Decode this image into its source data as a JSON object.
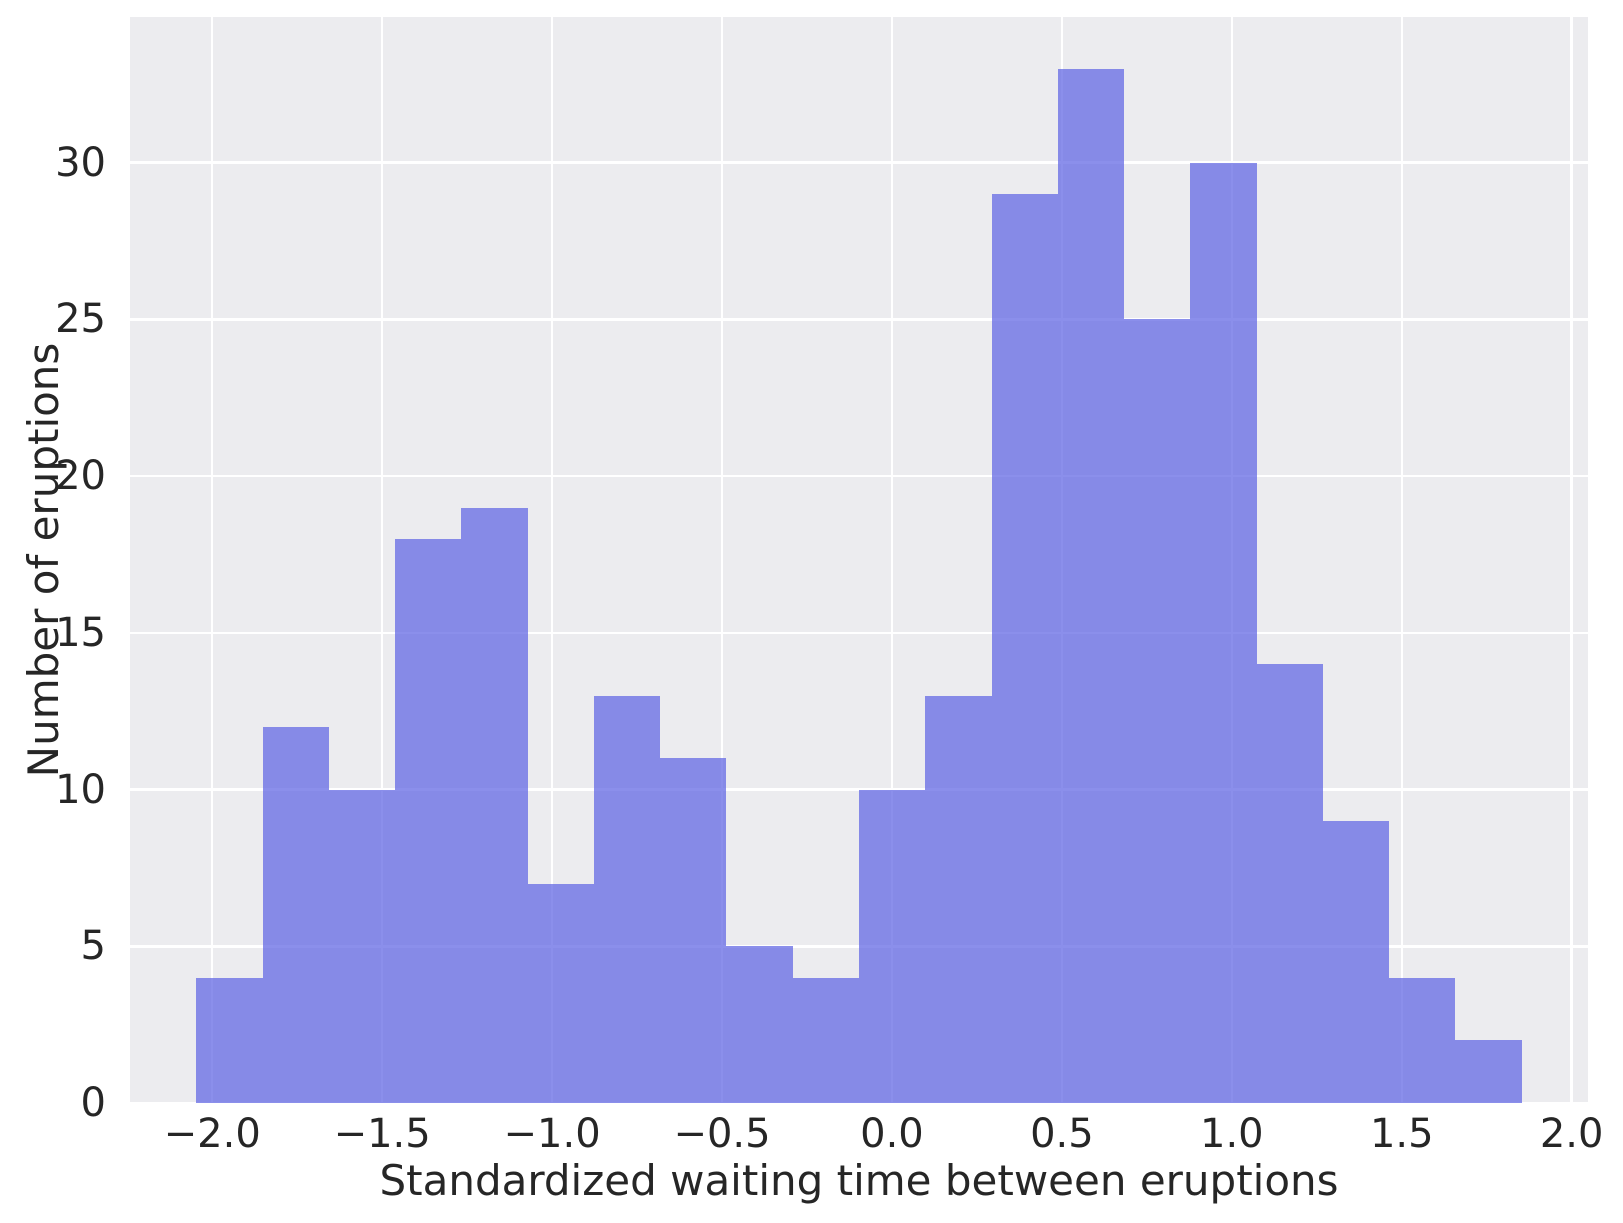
{
  "chart_data": {
    "type": "bar",
    "subtype": "histogram",
    "title": "",
    "xlabel": "Standardized waiting time between eruptions",
    "ylabel": "Number of eruptions",
    "bin_edges": [
      -2.047,
      -1.852,
      -1.657,
      -1.462,
      -1.267,
      -1.072,
      -0.877,
      -0.682,
      -0.487,
      -0.292,
      -0.097,
      0.098,
      0.293,
      0.488,
      0.683,
      0.878,
      1.073,
      1.268,
      1.463,
      1.658,
      1.853
    ],
    "counts": [
      4,
      12,
      10,
      18,
      19,
      7,
      13,
      11,
      5,
      4,
      10,
      13,
      29,
      33,
      25,
      30,
      14,
      9,
      4,
      2
    ],
    "total_observations": 272,
    "xticks": [
      {
        "v": -2.0,
        "label": "−2.0"
      },
      {
        "v": -1.5,
        "label": "−1.5"
      },
      {
        "v": -1.0,
        "label": "−1.0"
      },
      {
        "v": -0.5,
        "label": "−0.5"
      },
      {
        "v": 0.0,
        "label": "0.0"
      },
      {
        "v": 0.5,
        "label": "0.5"
      },
      {
        "v": 1.0,
        "label": "1.0"
      },
      {
        "v": 1.5,
        "label": "1.5"
      },
      {
        "v": 2.0,
        "label": "2.0"
      }
    ],
    "yticks": [
      {
        "v": 0,
        "label": "0"
      },
      {
        "v": 5,
        "label": "5"
      },
      {
        "v": 10,
        "label": "10"
      },
      {
        "v": 15,
        "label": "15"
      },
      {
        "v": 20,
        "label": "20"
      },
      {
        "v": 25,
        "label": "25"
      },
      {
        "v": 30,
        "label": "30"
      }
    ],
    "xlim": [
      -2.242,
      2.048
    ],
    "ylim": [
      0,
      34.65
    ],
    "grid": true,
    "legend": false
  },
  "style": {
    "plot_bg": "#ececef",
    "grid_color": "#ffffff",
    "bar_color": "rgba(100, 106, 228, 0.75)",
    "text_color": "#262626",
    "page_bg": "#ffffff"
  }
}
